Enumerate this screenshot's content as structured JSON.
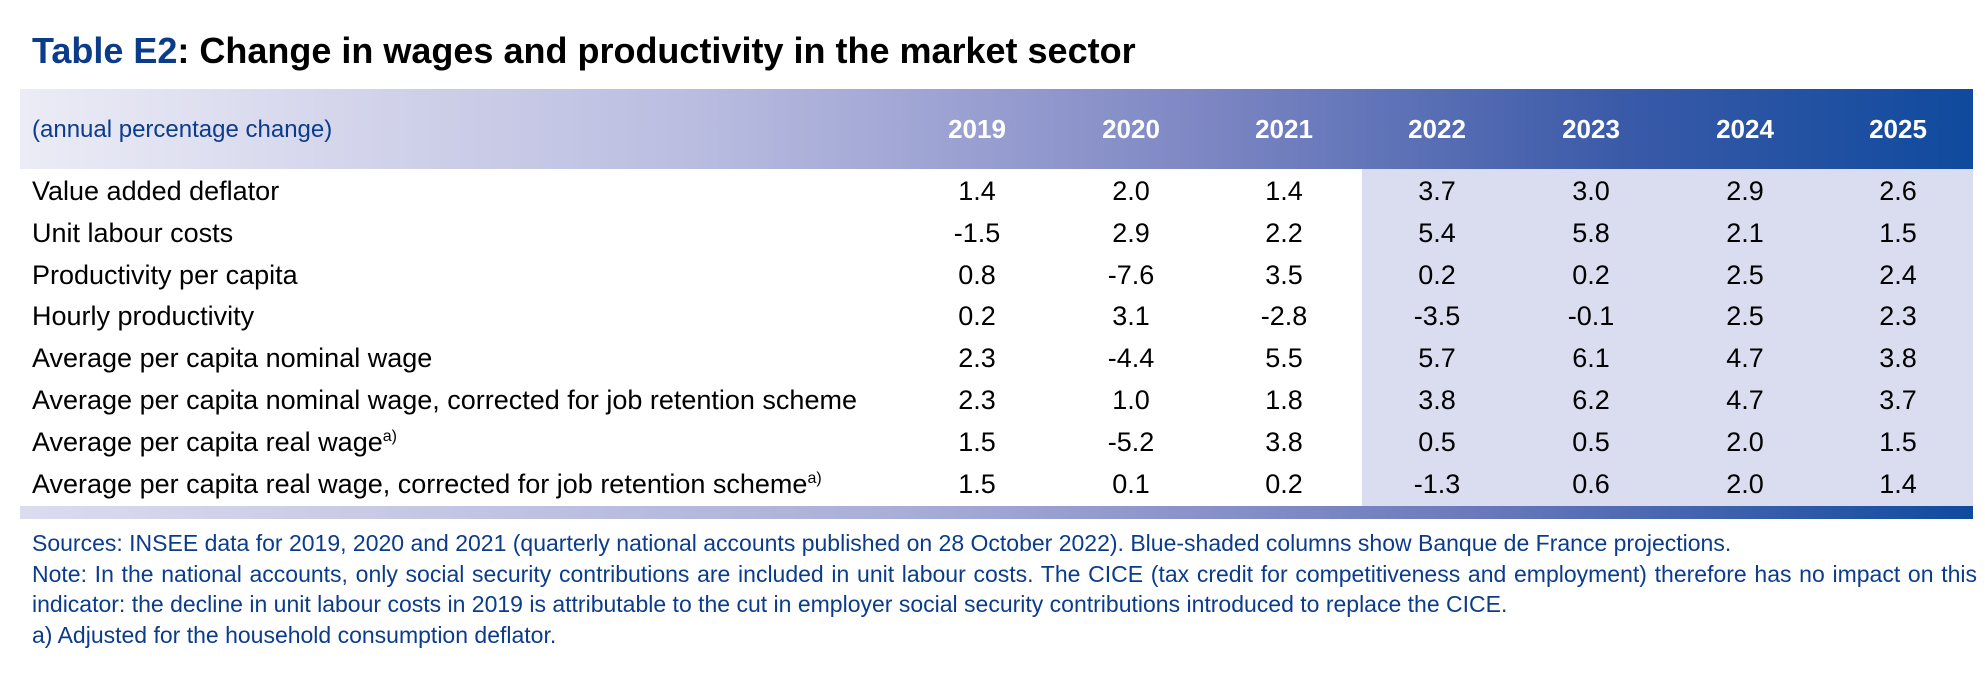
{
  "header": {
    "table_id": "Table E2",
    "title": ": Change in wages and productivity in the market sector"
  },
  "table": {
    "unit": "(annual percentage change)",
    "columns": [
      "2019",
      "2020",
      "2021",
      "2022",
      "2023",
      "2024",
      "2025"
    ],
    "rows": [
      {
        "label": "Value added deflator",
        "values": [
          "1.4",
          "2.0",
          "1.4",
          "3.7",
          "3.0",
          "2.9",
          "2.6"
        ]
      },
      {
        "label": "Unit labour costs",
        "values": [
          "-1.5",
          "2.9",
          "2.2",
          "5.4",
          "5.8",
          "2.1",
          "1.5"
        ]
      },
      {
        "label": "Productivity per capita",
        "values": [
          "0.8",
          "-7.6",
          "3.5",
          "0.2",
          "0.2",
          "2.5",
          "2.4"
        ]
      },
      {
        "label": "Hourly productivity",
        "values": [
          "0.2",
          "3.1",
          "-2.8",
          "-3.5",
          "-0.1",
          "2.5",
          "2.3"
        ]
      },
      {
        "label": "Average per capita nominal wage",
        "values": [
          "2.3",
          "-4.4",
          "5.5",
          "5.7",
          "6.1",
          "4.7",
          "3.8"
        ]
      },
      {
        "label": "Average per capita nominal wage, corrected for job retention scheme",
        "values": [
          "2.3",
          "1.0",
          "1.8",
          "3.8",
          "6.2",
          "4.7",
          "3.7"
        ]
      },
      {
        "label": "Average per capita real wage",
        "note_mark": "a)",
        "values": [
          "1.5",
          "-5.2",
          "3.8",
          "0.5",
          "0.5",
          "2.0",
          "1.5"
        ]
      },
      {
        "label": "Average per capita real wage, corrected for job retention scheme",
        "note_mark": "a)",
        "values": [
          "1.5",
          "0.1",
          "0.2",
          "-1.3",
          "0.6",
          "2.0",
          "1.4"
        ]
      }
    ]
  },
  "notes": [
    "Sources: INSEE data for 2019, 2020 and 2021 (quarterly national accounts published on 28 October 2022). Blue-shaded columns show Banque de France projections.",
    "Note: In the national accounts, only social security contributions are included in unit labour costs. The CICE (tax credit for competitiveness and employment) therefore has no impact on this indicator: the decline in unit labour costs in 2019 is attributable to the cut in employer social security contributions introduced to replace the CICE.",
    "a)  Adjusted for the household consumption deflator."
  ]
}
